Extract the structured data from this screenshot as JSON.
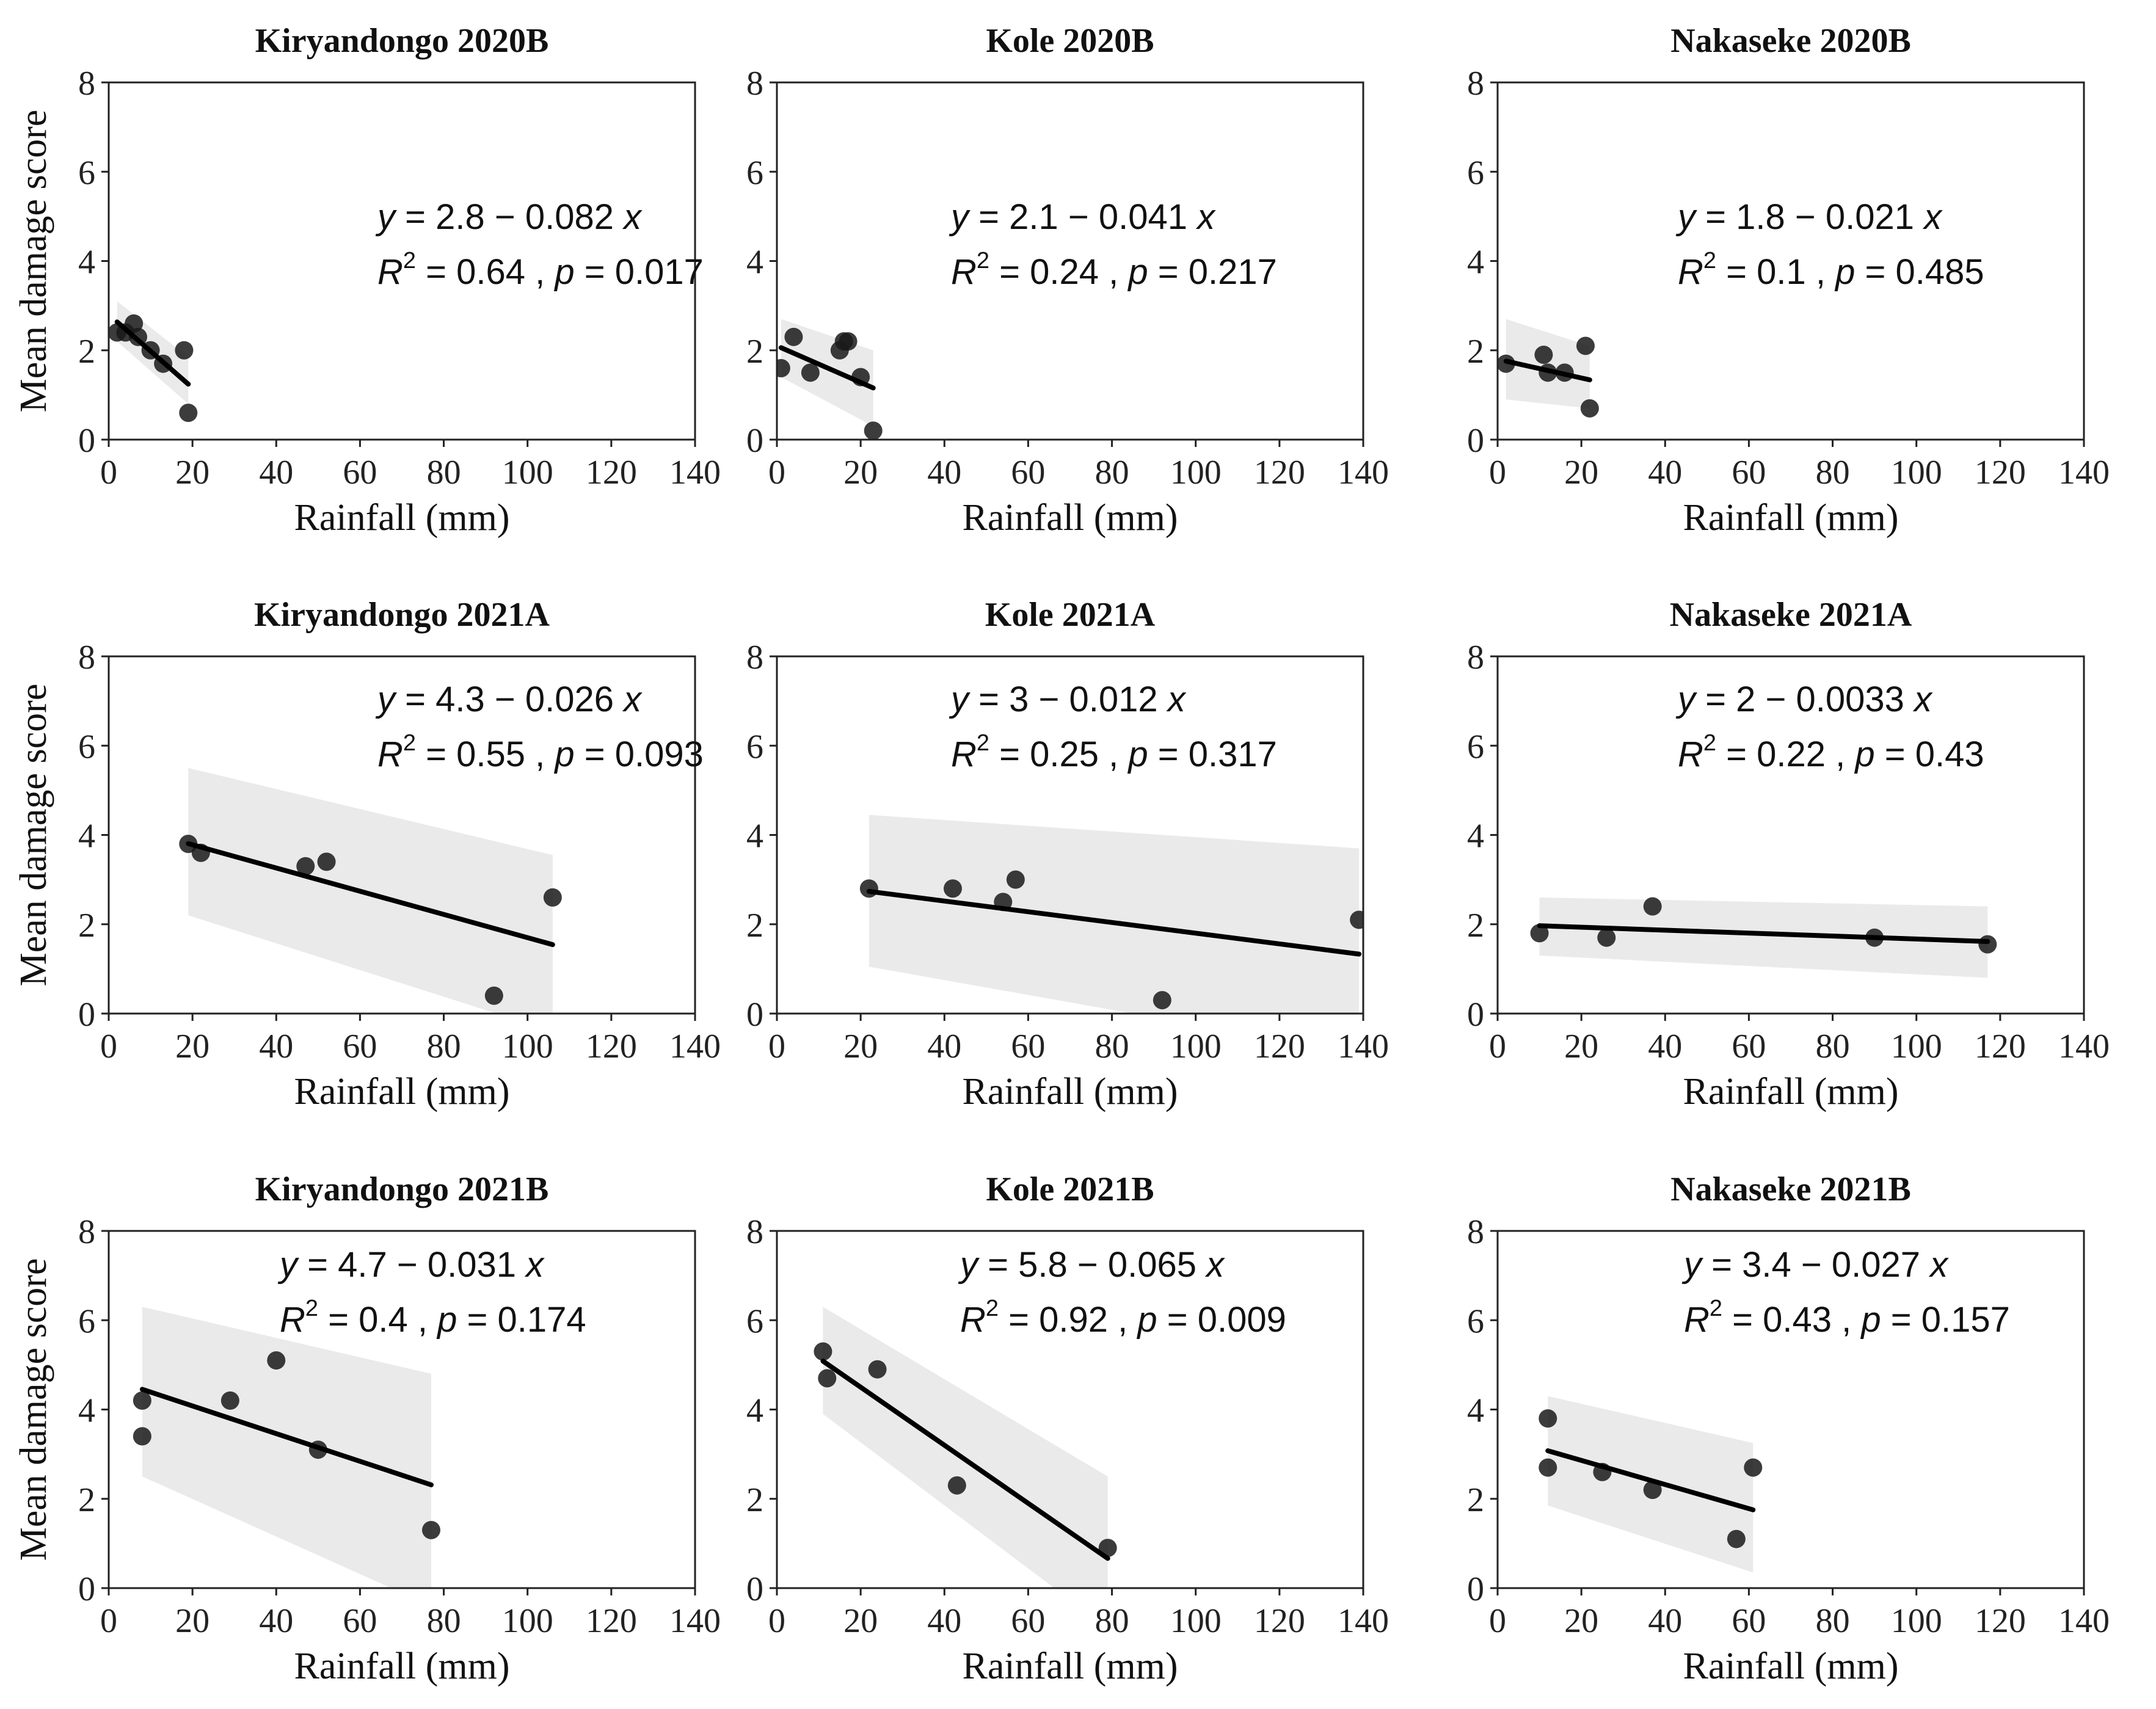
{
  "xlabel": "Rainfall (mm)",
  "ylabel": "Mean damage score",
  "colors": {
    "point": "#1a1a1a",
    "line": "#000000",
    "band": "#d9d9d9",
    "frame": "#222222"
  },
  "chart_data": [
    {
      "type": "scatter",
      "title": "Kiryandongo 2020B",
      "xlabel": "Rainfall (mm)",
      "ylabel": "Mean damage score",
      "xlim": [
        0,
        140
      ],
      "ylim": [
        0,
        8
      ],
      "xticks": [
        0,
        20,
        40,
        60,
        80,
        100,
        120,
        140
      ],
      "yticks": [
        0,
        2,
        4,
        6,
        8
      ],
      "points": [
        [
          2,
          2.4
        ],
        [
          4,
          2.4
        ],
        [
          6,
          2.6
        ],
        [
          7,
          2.3
        ],
        [
          10,
          2.0
        ],
        [
          13,
          1.7
        ],
        [
          18,
          2.0
        ],
        [
          19,
          0.6
        ]
      ],
      "fit": {
        "intercept": 2.8,
        "slope": -0.082,
        "x_range": [
          2,
          19
        ]
      },
      "ci": {
        "x": [
          2,
          19
        ],
        "lower": [
          2.2,
          0.8
        ],
        "upper": [
          3.1,
          1.85
        ]
      },
      "equation": "y = 2.8 − 0.082 x",
      "r2_value": "0.64",
      "p_value": "0.017",
      "equation_line": [
        "y",
        " = 2.8 − 0.082 ",
        "x"
      ],
      "stats_line": [
        "R",
        "2",
        " = 0.64 , ",
        "p",
        " = 0.017"
      ]
    },
    {
      "type": "scatter",
      "title": "Kole 2020B",
      "xlabel": "Rainfall (mm)",
      "ylabel": "Mean damage score",
      "xlim": [
        0,
        140
      ],
      "ylim": [
        0,
        8
      ],
      "xticks": [
        0,
        20,
        40,
        60,
        80,
        100,
        120,
        140
      ],
      "yticks": [
        0,
        2,
        4,
        6,
        8
      ],
      "points": [
        [
          1,
          1.6
        ],
        [
          4,
          2.3
        ],
        [
          8,
          1.5
        ],
        [
          15,
          2.0
        ],
        [
          16,
          2.2
        ],
        [
          17,
          2.2
        ],
        [
          20,
          1.4
        ],
        [
          23,
          0.2
        ]
      ],
      "fit": {
        "intercept": 2.1,
        "slope": -0.041,
        "x_range": [
          1,
          23
        ]
      },
      "ci": {
        "x": [
          1,
          23
        ],
        "lower": [
          1.4,
          0.3
        ],
        "upper": [
          2.7,
          2.0
        ]
      },
      "equation": "y = 2.1 − 0.041 x",
      "r2_value": "0.24",
      "p_value": "0.217",
      "equation_line": [
        "y",
        " = 2.1 − 0.041 ",
        "x"
      ],
      "stats_line": [
        "R",
        "2",
        " = 0.24 , ",
        "p",
        " = 0.217"
      ]
    },
    {
      "type": "scatter",
      "title": "Nakaseke 2020B",
      "xlabel": "Rainfall (mm)",
      "ylabel": "Mean damage score",
      "xlim": [
        0,
        140
      ],
      "ylim": [
        0,
        8
      ],
      "xticks": [
        0,
        20,
        40,
        60,
        80,
        100,
        120,
        140
      ],
      "yticks": [
        0,
        2,
        4,
        6,
        8
      ],
      "points": [
        [
          2,
          1.7
        ],
        [
          11,
          1.9
        ],
        [
          12,
          1.5
        ],
        [
          16,
          1.5
        ],
        [
          21,
          2.1
        ],
        [
          22,
          0.7
        ]
      ],
      "fit": {
        "intercept": 1.8,
        "slope": -0.021,
        "x_range": [
          2,
          22
        ]
      },
      "ci": {
        "x": [
          2,
          22
        ],
        "lower": [
          0.9,
          0.7
        ],
        "upper": [
          2.7,
          2.1
        ]
      },
      "equation": "y = 1.8 − 0.021 x",
      "r2_value": "0.1",
      "p_value": "0.485",
      "equation_line": [
        "y",
        " = 1.8 − 0.021 ",
        "x"
      ],
      "stats_line": [
        "R",
        "2",
        " = 0.1 , ",
        "p",
        " = 0.485"
      ]
    },
    {
      "type": "scatter",
      "title": "Kiryandongo 2021A",
      "xlabel": "Rainfall (mm)",
      "ylabel": "Mean damage score",
      "xlim": [
        0,
        140
      ],
      "ylim": [
        0,
        8
      ],
      "xticks": [
        0,
        20,
        40,
        60,
        80,
        100,
        120,
        140
      ],
      "yticks": [
        0,
        2,
        4,
        6,
        8
      ],
      "points": [
        [
          19,
          3.8
        ],
        [
          22,
          3.6
        ],
        [
          47,
          3.3
        ],
        [
          52,
          3.4
        ],
        [
          92,
          0.4
        ],
        [
          106,
          2.6
        ]
      ],
      "fit": {
        "intercept": 4.3,
        "slope": -0.026,
        "x_range": [
          19,
          106
        ]
      },
      "ci": {
        "x": [
          19,
          106
        ],
        "lower": [
          2.2,
          -0.4
        ],
        "upper": [
          5.5,
          3.55
        ]
      },
      "equation": "y = 4.3 − 0.026 x",
      "r2_value": "0.55",
      "p_value": "0.093",
      "equation_line": [
        "y",
        " = 4.3 − 0.026 ",
        "x"
      ],
      "stats_line": [
        "R",
        "2",
        " = 0.55 , ",
        "p",
        " = 0.093"
      ]
    },
    {
      "type": "scatter",
      "title": "Kole 2021A",
      "xlabel": "Rainfall (mm)",
      "ylabel": "Mean damage score",
      "xlim": [
        0,
        140
      ],
      "ylim": [
        0,
        8
      ],
      "xticks": [
        0,
        20,
        40,
        60,
        80,
        100,
        120,
        140
      ],
      "yticks": [
        0,
        2,
        4,
        6,
        8
      ],
      "points": [
        [
          22,
          2.8
        ],
        [
          42,
          2.8
        ],
        [
          54,
          2.5
        ],
        [
          57,
          3.0
        ],
        [
          92,
          0.3
        ],
        [
          139,
          2.1
        ]
      ],
      "fit": {
        "intercept": 3.0,
        "slope": -0.012,
        "x_range": [
          22,
          139
        ]
      },
      "ci": {
        "x": [
          22,
          139
        ],
        "lower": [
          1.05,
          -0.9
        ],
        "upper": [
          4.45,
          3.7
        ]
      },
      "equation": "y = 3 − 0.012 x",
      "r2_value": "0.25",
      "p_value": "0.317",
      "equation_line": [
        "y",
        " = 3 − 0.012 ",
        "x"
      ],
      "stats_line": [
        "R",
        "2",
        " = 0.25 , ",
        "p",
        " = 0.317"
      ]
    },
    {
      "type": "scatter",
      "title": "Nakaseke 2021A",
      "xlabel": "Rainfall (mm)",
      "ylabel": "Mean damage score",
      "xlim": [
        0,
        140
      ],
      "ylim": [
        0,
        8
      ],
      "xticks": [
        0,
        20,
        40,
        60,
        80,
        100,
        120,
        140
      ],
      "yticks": [
        0,
        2,
        4,
        6,
        8
      ],
      "points": [
        [
          10,
          1.8
        ],
        [
          26,
          1.7
        ],
        [
          37,
          2.4
        ],
        [
          90,
          1.7
        ],
        [
          117,
          1.55
        ]
      ],
      "fit": {
        "intercept": 2.0,
        "slope": -0.0033,
        "x_range": [
          10,
          117
        ]
      },
      "ci": {
        "x": [
          10,
          117
        ],
        "lower": [
          1.3,
          0.8
        ],
        "upper": [
          2.6,
          2.4
        ]
      },
      "equation": "y = 2 − 0.0033 x",
      "r2_value": "0.22",
      "p_value": "0.43",
      "equation_line": [
        "y",
        " = 2 − 0.0033 ",
        "x"
      ],
      "stats_line": [
        "R",
        "2",
        " = 0.22 , ",
        "p",
        " = 0.43"
      ]
    },
    {
      "type": "scatter",
      "title": "Kiryandongo 2021B",
      "xlabel": "Rainfall (mm)",
      "ylabel": "Mean damage score",
      "xlim": [
        0,
        140
      ],
      "ylim": [
        0,
        8
      ],
      "xticks": [
        0,
        20,
        40,
        60,
        80,
        100,
        120,
        140
      ],
      "yticks": [
        0,
        2,
        4,
        6,
        8
      ],
      "points": [
        [
          8,
          4.2
        ],
        [
          8,
          3.4
        ],
        [
          29,
          4.2
        ],
        [
          40,
          5.1
        ],
        [
          50,
          3.1
        ],
        [
          77,
          1.3
        ]
      ],
      "fit": {
        "intercept": 4.7,
        "slope": -0.031,
        "x_range": [
          8,
          77
        ]
      },
      "ci": {
        "x": [
          8,
          77
        ],
        "lower": [
          2.5,
          -0.4
        ],
        "upper": [
          6.3,
          4.8
        ]
      },
      "equation": "y = 4.7 − 0.031 x",
      "r2_value": "0.4",
      "p_value": "0.174",
      "equation_line": [
        "y",
        " = 4.7 − 0.031 ",
        "x"
      ],
      "stats_line": [
        "R",
        "2",
        " = 0.4 , ",
        "p",
        " = 0.174"
      ]
    },
    {
      "type": "scatter",
      "title": "Kole 2021B",
      "xlabel": "Rainfall (mm)",
      "ylabel": "Mean damage score",
      "xlim": [
        0,
        140
      ],
      "ylim": [
        0,
        8
      ],
      "xticks": [
        0,
        20,
        40,
        60,
        80,
        100,
        120,
        140
      ],
      "yticks": [
        0,
        2,
        4,
        6,
        8
      ],
      "points": [
        [
          11,
          5.3
        ],
        [
          12,
          4.7
        ],
        [
          24,
          4.9
        ],
        [
          43,
          2.3
        ],
        [
          79,
          0.9
        ]
      ],
      "fit": {
        "intercept": 5.8,
        "slope": -0.065,
        "x_range": [
          11,
          79
        ]
      },
      "ci": {
        "x": [
          11,
          79
        ],
        "lower": [
          3.9,
          -0.9
        ],
        "upper": [
          6.3,
          2.5
        ]
      },
      "equation": "y = 5.8 − 0.065 x",
      "r2_value": "0.92",
      "p_value": "0.009",
      "equation_line": [
        "y",
        " = 5.8 − 0.065 ",
        "x"
      ],
      "stats_line": [
        "R",
        "2",
        " = 0.92 , ",
        "p",
        " = 0.009"
      ]
    },
    {
      "type": "scatter",
      "title": "Nakaseke 2021B",
      "xlabel": "Rainfall (mm)",
      "ylabel": "Mean damage score",
      "xlim": [
        0,
        140
      ],
      "ylim": [
        0,
        8
      ],
      "xticks": [
        0,
        20,
        40,
        60,
        80,
        100,
        120,
        140
      ],
      "yticks": [
        0,
        2,
        4,
        6,
        8
      ],
      "points": [
        [
          12,
          3.8
        ],
        [
          12,
          2.7
        ],
        [
          25,
          2.6
        ],
        [
          37,
          2.2
        ],
        [
          57,
          1.1
        ],
        [
          61,
          2.7
        ]
      ],
      "fit": {
        "intercept": 3.4,
        "slope": -0.027,
        "x_range": [
          12,
          61
        ]
      },
      "ci": {
        "x": [
          12,
          61
        ],
        "lower": [
          1.85,
          0.35
        ],
        "upper": [
          4.3,
          3.25
        ]
      },
      "equation": "y = 3.4 − 0.027 x",
      "r2_value": "0.43",
      "p_value": "0.157",
      "equation_line": [
        "y",
        " = 3.4 − 0.027 ",
        "x"
      ],
      "stats_line": [
        "R",
        "2",
        " = 0.43 , ",
        "p",
        " = 0.157"
      ]
    }
  ]
}
